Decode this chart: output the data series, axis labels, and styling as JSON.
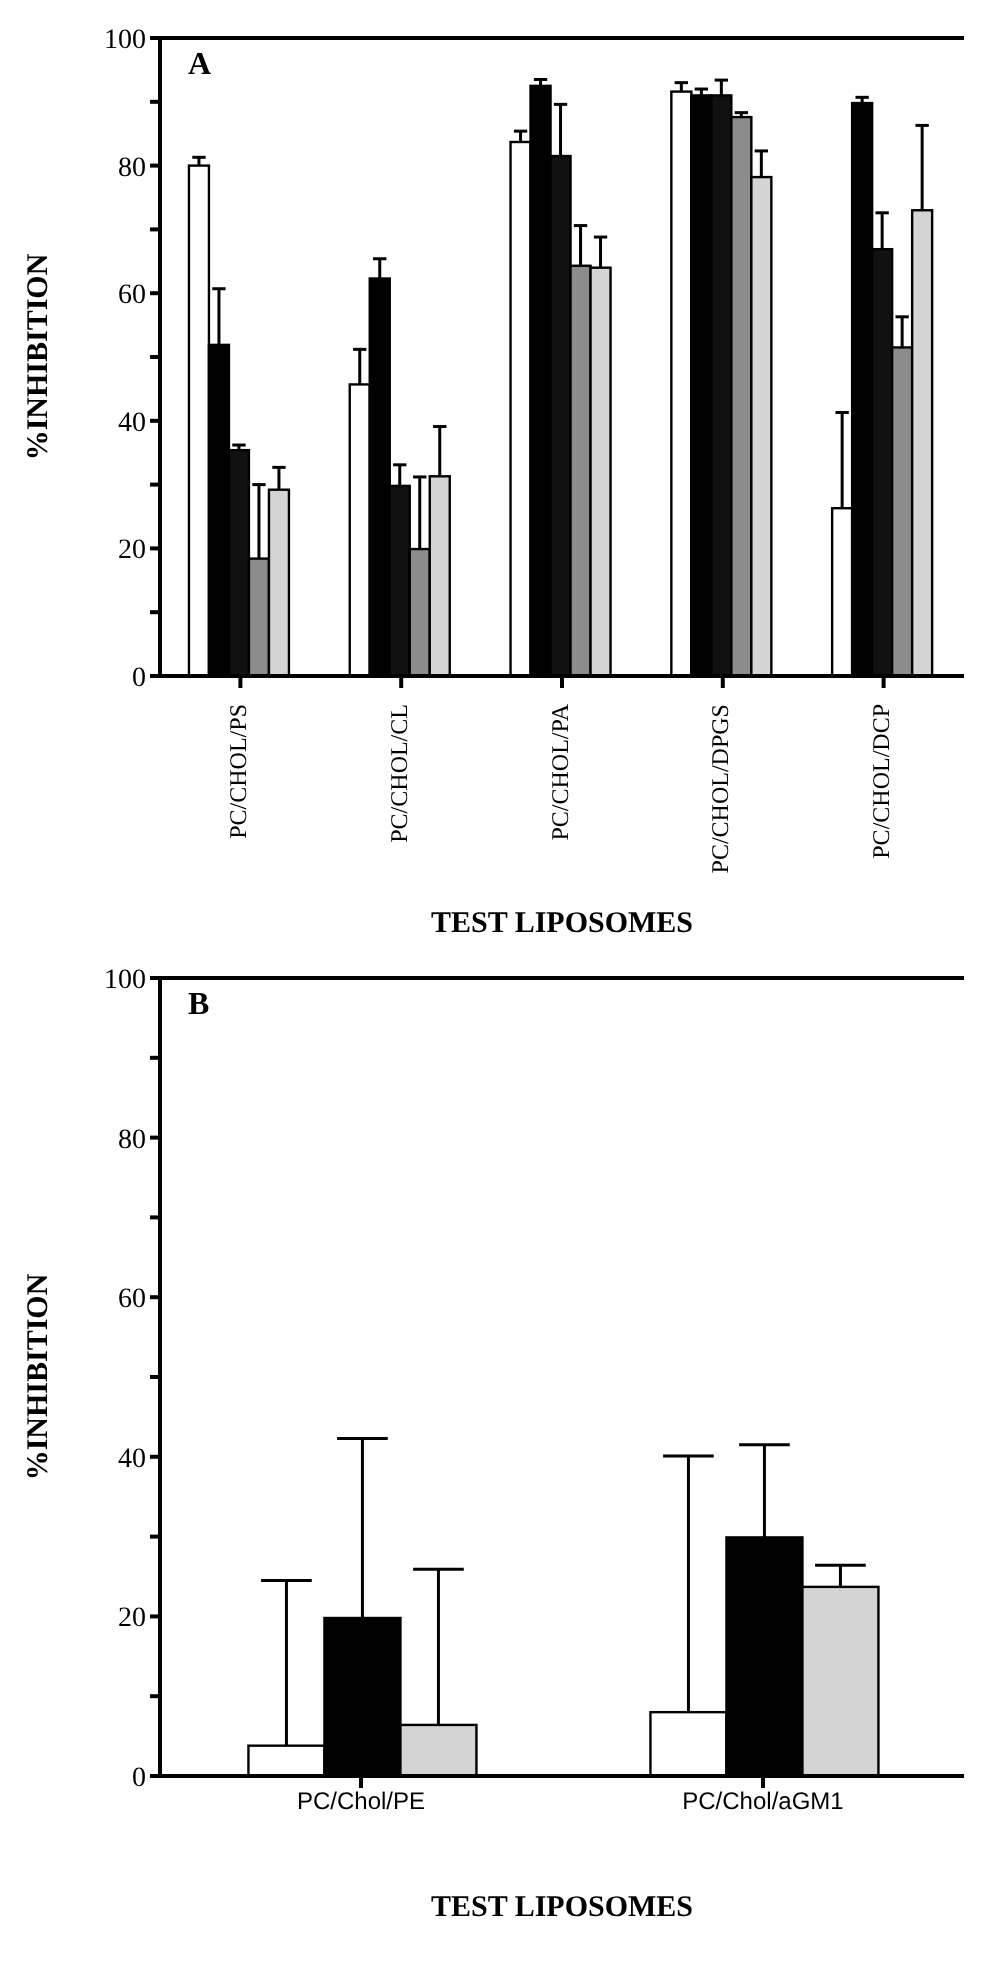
{
  "chart_data": [
    {
      "type": "bar",
      "ylabel": "%INHIBITION",
      "xlabel": "TEST LIPOSOMES",
      "annotations": [
        "A"
      ],
      "categories": [
        "PC/CHOL/PS",
        "PC/CHOL/CL",
        "PC/CHOL/PA",
        "PC/CHOL/DPGS",
        "PC/CHOL/DCP"
      ],
      "series": [
        {
          "color": "#ffffff",
          "values": [
            80,
            45.7,
            83.7,
            91.6,
            26.3
          ],
          "errors": [
            [
              80,
              81.3
            ],
            [
              45.7,
              51.2
            ],
            [
              83.7,
              85.4
            ],
            [
              91.6,
              93
            ],
            [
              26.3,
              41.3
            ]
          ]
        },
        {
          "color": "#000000",
          "values": [
            51.9,
            62.3,
            92.5,
            91,
            89.8
          ],
          "errors": [
            [
              51.9,
              60.7
            ],
            [
              62.3,
              65.4
            ],
            [
              92.5,
              93.5
            ],
            [
              91,
              92
            ],
            [
              89.8,
              90.7
            ]
          ]
        },
        {
          "color": "#111111",
          "values": [
            35.4,
            29.8,
            81.5,
            91,
            66.9
          ],
          "errors": [
            [
              35.4,
              36.2
            ],
            [
              29.8,
              33.1
            ],
            [
              81.5,
              89.6
            ],
            [
              91,
              93.4
            ],
            [
              66.9,
              72.6
            ]
          ]
        },
        {
          "color": "#8c8c8c",
          "values": [
            18.4,
            19.9,
            64.3,
            87.6,
            51.5
          ],
          "errors": [
            [
              18.4,
              30
            ],
            [
              19.9,
              31.2
            ],
            [
              64.3,
              70.6
            ],
            [
              87.6,
              88.3
            ],
            [
              51.5,
              56.3
            ]
          ]
        },
        {
          "color": "#d4d4d4",
          "values": [
            29.2,
            31.3,
            64,
            78.2,
            73
          ],
          "errors": [
            [
              29.2,
              32.7
            ],
            [
              31.3,
              39.1
            ],
            [
              64,
              68.8
            ],
            [
              78.2,
              82.3
            ],
            [
              73,
              86.3
            ]
          ]
        }
      ],
      "ylim": [
        0,
        100
      ],
      "yticks": [
        0,
        {
          "value": 10,
          "label": null
        },
        20,
        {
          "value": 30,
          "label": null
        },
        40,
        {
          "value": 50,
          "label": null
        },
        60,
        {
          "value": 70,
          "label": null
        },
        80,
        {
          "value": 90,
          "label": null
        },
        100
      ]
    },
    {
      "type": "bar",
      "ylabel": "%INHIBITION",
      "xlabel": "TEST LIPOSOMES",
      "annotations": [
        "B"
      ],
      "categories": [
        "PC/Chol/PE",
        "PC/Chol/aGM1"
      ],
      "series": [
        {
          "color": "#ffffff",
          "values": [
            3.8,
            8
          ],
          "errors": [
            [
              3.8,
              24.5
            ],
            [
              8,
              40.1
            ]
          ]
        },
        {
          "color": "#000000",
          "values": [
            19.8,
            29.9
          ],
          "errors": [
            [
              19.8,
              42.3
            ],
            [
              29.9,
              41.5
            ]
          ]
        },
        {
          "color": "#d4d4d4",
          "values": [
            6.4,
            23.7
          ],
          "errors": [
            [
              6.4,
              25.9
            ],
            [
              23.7,
              26.4
            ]
          ]
        }
      ],
      "ylim": [
        0,
        100
      ],
      "yticks": [
        0,
        {
          "value": 10,
          "label": null
        },
        20,
        {
          "value": 30,
          "label": null
        },
        40,
        {
          "value": 50,
          "label": null
        },
        60,
        {
          "value": 70,
          "label": null
        },
        80,
        {
          "value": 90,
          "label": null
        },
        100
      ]
    }
  ]
}
